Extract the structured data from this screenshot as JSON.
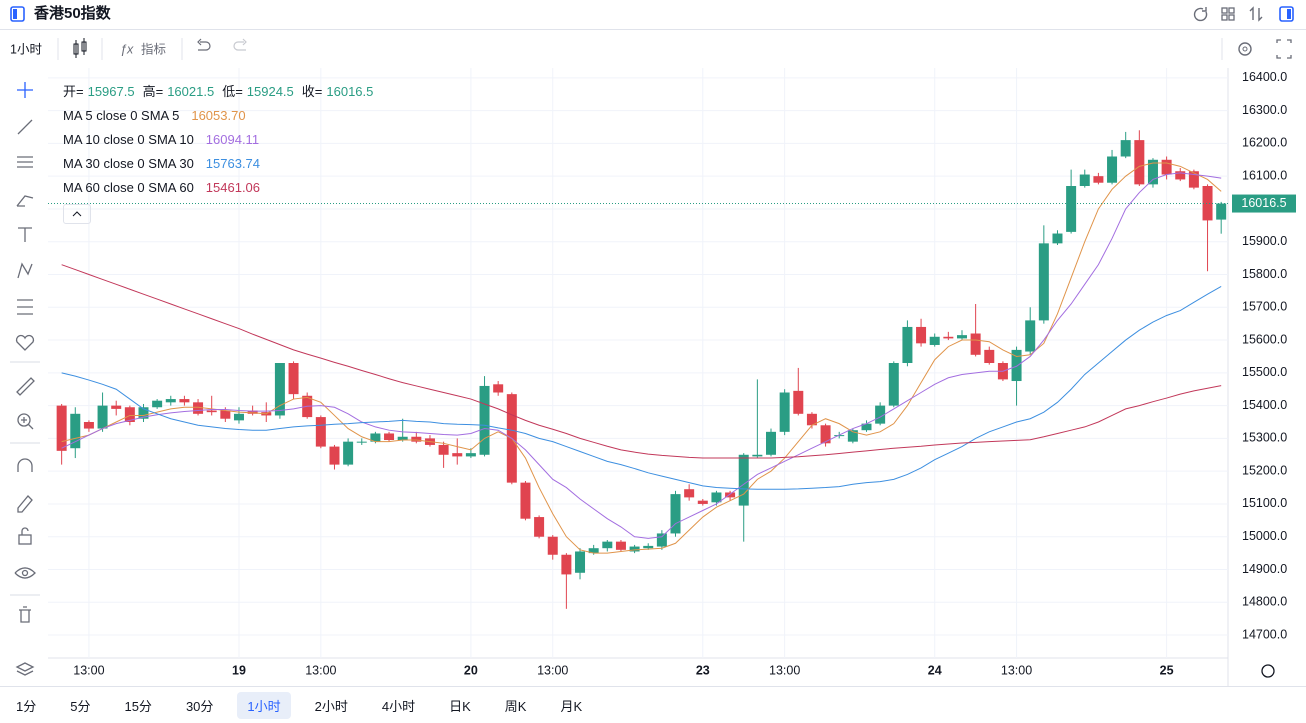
{
  "header": {
    "title": "香港50指数"
  },
  "toolbar": {
    "interval": "1小时",
    "indicators": "指标"
  },
  "chart_data": {
    "type": "candlestick",
    "grid": true,
    "up_color": "#2a9d84",
    "down_color": "#e0444f",
    "open": [
      15400,
      15270,
      15350,
      15330,
      15400,
      15395,
      15360,
      15395,
      15410,
      15420,
      15410,
      15385,
      15385,
      15355,
      15385,
      15380,
      15370,
      15530,
      15430,
      15365,
      15275,
      15220,
      15290,
      15290,
      15315,
      15295,
      15305,
      15300,
      15280,
      15255,
      15245,
      15250,
      15465,
      15435,
      15165,
      15060,
      15000,
      14945,
      14890,
      14950,
      14965,
      14985,
      14955,
      14965,
      14970,
      15010,
      15145,
      15110,
      15105,
      15135,
      15095,
      15245,
      15250,
      15320,
      15445,
      15375,
      15340,
      15310,
      15290,
      15325,
      15345,
      15400,
      15530,
      15640,
      15585,
      15610,
      15605,
      15620,
      15570,
      15530,
      15475,
      15565,
      15660,
      15895,
      15930,
      16070,
      16100,
      16080,
      16160,
      16210,
      16075,
      16150,
      16115,
      16115,
      16070,
      15967.5
    ],
    "high": [
      15405,
      15395,
      15355,
      15440,
      15415,
      15400,
      15405,
      15420,
      15430,
      15430,
      15420,
      15430,
      15395,
      15395,
      15400,
      15410,
      15530,
      15535,
      15440,
      15370,
      15280,
      15300,
      15300,
      15320,
      15320,
      15360,
      15320,
      15310,
      15290,
      15300,
      15270,
      15490,
      15475,
      15440,
      15170,
      15065,
      15005,
      14950,
      14965,
      14975,
      14990,
      14990,
      14975,
      14980,
      15020,
      15140,
      15160,
      15115,
      15140,
      15140,
      15255,
      15480,
      15330,
      15450,
      15515,
      15380,
      15345,
      15320,
      15330,
      15355,
      15410,
      15535,
      15660,
      15665,
      15620,
      15625,
      15630,
      15710,
      15580,
      15535,
      15580,
      15700,
      15950,
      15935,
      16120,
      16120,
      16110,
      16180,
      16235,
      16240,
      16155,
      16160,
      16125,
      16120,
      16075,
      16021.5
    ],
    "low": [
      15220,
      15240,
      15320,
      15320,
      15370,
      15340,
      15350,
      15390,
      15400,
      15400,
      15370,
      15370,
      15350,
      15345,
      15370,
      15350,
      15360,
      15420,
      15360,
      15270,
      15205,
      15215,
      15280,
      15285,
      15290,
      15290,
      15285,
      15275,
      15210,
      15220,
      15240,
      15245,
      15430,
      15160,
      15050,
      14995,
      14930,
      14780,
      14870,
      14945,
      14955,
      14955,
      14950,
      14960,
      14960,
      15000,
      15110,
      15095,
      15095,
      15110,
      14985,
      15240,
      15245,
      15310,
      15370,
      15330,
      15275,
      15300,
      15285,
      15320,
      15340,
      15395,
      15520,
      15580,
      15580,
      15600,
      15600,
      15550,
      15525,
      15475,
      15400,
      15555,
      15650,
      15890,
      15925,
      16065,
      16075,
      16075,
      16155,
      16070,
      16065,
      16090,
      16085,
      16060,
      15810,
      15924.5
    ],
    "close": [
      15262,
      15375,
      15330,
      15400,
      15390,
      15350,
      15395,
      15415,
      15420,
      15410,
      15375,
      15380,
      15360,
      15375,
      15375,
      15370,
      15530,
      15435,
      15365,
      15275,
      15220,
      15290,
      15290,
      15315,
      15295,
      15305,
      15290,
      15280,
      15250,
      15245,
      15255,
      15460,
      15440,
      15165,
      15055,
      15000,
      14945,
      14885,
      14955,
      14965,
      14985,
      14960,
      14970,
      14972,
      15010,
      15130,
      15120,
      15100,
      15135,
      15120,
      15250,
      15250,
      15320,
      15440,
      15375,
      15340,
      15285,
      15310,
      15325,
      15345,
      15400,
      15530,
      15640,
      15590,
      15610,
      15605,
      15615,
      15555,
      15530,
      15480,
      15570,
      15660,
      15895,
      15925,
      16070,
      16105,
      16080,
      16160,
      16210,
      16075,
      16150,
      16105,
      16090,
      16065,
      15965,
      16016.5
    ],
    "series": [
      {
        "name": "MA 5 close 0 SMA 5",
        "legend_value": "16053.70",
        "color": "#e0944a",
        "values": [
          15290,
          15300,
          15310,
          15330,
          15350,
          15370,
          15370,
          15380,
          15390,
          15395,
          15395,
          15390,
          15385,
          15380,
          15378,
          15375,
          15400,
          15420,
          15425,
          15410,
          15370,
          15330,
          15305,
          15290,
          15290,
          15295,
          15295,
          15290,
          15285,
          15275,
          15265,
          15300,
          15320,
          15300,
          15240,
          15150,
          15070,
          15000,
          14960,
          14950,
          14950,
          14955,
          14960,
          14962,
          14965,
          14980,
          15020,
          15060,
          15090,
          15110,
          15130,
          15175,
          15200,
          15240,
          15290,
          15340,
          15360,
          15345,
          15320,
          15310,
          15320,
          15345,
          15400,
          15470,
          15540,
          15580,
          15600,
          15600,
          15595,
          15570,
          15550,
          15555,
          15590,
          15680,
          15790,
          15900,
          16000,
          16060,
          16100,
          16130,
          16140,
          16140,
          16130,
          16110,
          16090,
          16053.7
        ]
      },
      {
        "name": "MA 10 close 0 SMA 10",
        "legend_value": "16094.11",
        "color": "#a36ee0",
        "values": [
          15270,
          15290,
          15310,
          15330,
          15345,
          15355,
          15365,
          15372,
          15378,
          15382,
          15385,
          15388,
          15388,
          15385,
          15383,
          15383,
          15385,
          15390,
          15398,
          15400,
          15395,
          15375,
          15350,
          15335,
          15325,
          15320,
          15318,
          15315,
          15312,
          15310,
          15315,
          15330,
          15325,
          15300,
          15265,
          15220,
          15175,
          15150,
          15115,
          15085,
          15055,
          15030,
          15000,
          14995,
          15000,
          15040,
          15060,
          15080,
          15100,
          15130,
          15160,
          15190,
          15210,
          15230,
          15250,
          15270,
          15290,
          15310,
          15330,
          15345,
          15365,
          15390,
          15415,
          15440,
          15465,
          15485,
          15495,
          15500,
          15505,
          15505,
          15520,
          15550,
          15600,
          15660,
          15710,
          15770,
          15830,
          15910,
          16000,
          16050,
          16090,
          16105,
          16110,
          16105,
          16100,
          16094.11
        ]
      },
      {
        "name": "MA 30 close 0 SMA 30",
        "legend_value": "15763.74",
        "color": "#3d8fe0",
        "values": [
          15500,
          15490,
          15478,
          15465,
          15450,
          15420,
          15390,
          15375,
          15360,
          15350,
          15340,
          15335,
          15330,
          15327,
          15325,
          15325,
          15330,
          15335,
          15338,
          15340,
          15343,
          15345,
          15348,
          15350,
          15352,
          15355,
          15352,
          15350,
          15345,
          15343,
          15342,
          15340,
          15332,
          15325,
          15315,
          15300,
          15290,
          15275,
          15260,
          15245,
          15230,
          15220,
          15208,
          15195,
          15185,
          15175,
          15165,
          15155,
          15150,
          15148,
          15146,
          15145,
          15145,
          15145,
          15146,
          15148,
          15150,
          15153,
          15160,
          15165,
          15168,
          15175,
          15190,
          15210,
          15235,
          15255,
          15275,
          15300,
          15320,
          15335,
          15350,
          15360,
          15380,
          15410,
          15450,
          15495,
          15530,
          15565,
          15600,
          15630,
          15655,
          15675,
          15690,
          15715,
          15740,
          15763.74
        ]
      },
      {
        "name": "MA 60 close 0 SMA 60",
        "legend_value": "15461.06",
        "color": "#c2385a",
        "values": [
          15830,
          15815,
          15800,
          15785,
          15770,
          15755,
          15740,
          15725,
          15710,
          15695,
          15680,
          15665,
          15650,
          15635,
          15618,
          15602,
          15586,
          15570,
          15557,
          15545,
          15532,
          15520,
          15507,
          15495,
          15482,
          15470,
          15460,
          15450,
          15440,
          15430,
          15420,
          15405,
          15390,
          15372,
          15355,
          15340,
          15328,
          15315,
          15300,
          15288,
          15276,
          15265,
          15258,
          15252,
          15248,
          15245,
          15242,
          15240,
          15240,
          15240,
          15240,
          15240,
          15240,
          15242,
          15244,
          15247,
          15250,
          15254,
          15258,
          15262,
          15266,
          15270,
          15273,
          15276,
          15280,
          15283,
          15286,
          15288,
          15290,
          15292,
          15294,
          15296,
          15305,
          15315,
          15325,
          15335,
          15350,
          15370,
          15390,
          15400,
          15412,
          15423,
          15435,
          15445,
          15453,
          15461.06
        ]
      }
    ],
    "ohlc_legend": [
      {
        "label": "开=",
        "value": 15967.5
      },
      {
        "label": "高=",
        "value": 16021.5
      },
      {
        "label": "低=",
        "value": 15924.5
      },
      {
        "label": "收=",
        "value": 16016.5
      }
    ],
    "last_price": 16016.5,
    "xlim": [
      -1,
      85.5
    ],
    "ylim": [
      14630,
      16430
    ],
    "yticks": [
      {
        "value": 14700,
        "label": "14700.0"
      },
      {
        "value": 14800,
        "label": "14800.0"
      },
      {
        "value": 14900,
        "label": "14900.0"
      },
      {
        "value": 15000,
        "label": "15000.0"
      },
      {
        "value": 15100,
        "label": "15100.0"
      },
      {
        "value": 15200,
        "label": "15200.0"
      },
      {
        "value": 15300,
        "label": "15300.0"
      },
      {
        "value": 15400,
        "label": "15400.0"
      },
      {
        "value": 15500,
        "label": "15500.0"
      },
      {
        "value": 15600,
        "label": "15600.0"
      },
      {
        "value": 15700,
        "label": "15700.0"
      },
      {
        "value": 15800,
        "label": "15800.0"
      },
      {
        "value": 15900,
        "label": "15900.0"
      },
      {
        "value": 16000,
        "label": "16000.0"
      },
      {
        "value": 16100,
        "label": "16100.0"
      },
      {
        "value": 16200,
        "label": "16200.0"
      },
      {
        "value": 16300,
        "label": "16300.0"
      },
      {
        "value": 16400,
        "label": "16400.0"
      }
    ],
    "xticks": [
      {
        "value": 2,
        "label": "13:00"
      },
      {
        "value": 13,
        "label": "19"
      },
      {
        "value": 19,
        "label": "13:00"
      },
      {
        "value": 30,
        "label": "20"
      },
      {
        "value": 36,
        "label": "13:00"
      },
      {
        "value": 47,
        "label": "23"
      },
      {
        "value": 53,
        "label": "13:00"
      },
      {
        "value": 64,
        "label": "24"
      },
      {
        "value": 70,
        "label": "13:00"
      },
      {
        "value": 81,
        "label": "25"
      }
    ]
  },
  "intervals": [
    "1分",
    "5分",
    "15分",
    "30分",
    "1小时",
    "2小时",
    "4小时",
    "日K",
    "周K",
    "月K"
  ],
  "active_interval": 4
}
